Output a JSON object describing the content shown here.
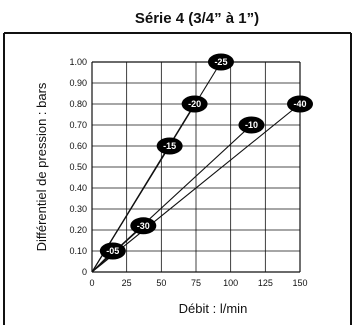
{
  "chart_data": {
    "type": "line",
    "title": "Série 4 (3/4” à 1”)",
    "xlabel": "Débit : l/min",
    "ylabel": "Différentiel de pression : bars",
    "xlim": [
      0,
      150
    ],
    "ylim": [
      0,
      1.0
    ],
    "x_ticks": [
      "0",
      "25",
      "50",
      "75",
      "100",
      "125",
      "150"
    ],
    "y_ticks": [
      "0",
      "0.10",
      "0.20",
      "0.30",
      "0.40",
      "0.50",
      "0.60",
      "0.70",
      "0.80",
      "0.90",
      "1.00"
    ],
    "grid": true,
    "series": [
      {
        "name": "-05",
        "x": [
          0,
          15
        ],
        "y": [
          0,
          0.1
        ]
      },
      {
        "name": "-30",
        "x": [
          0,
          37
        ],
        "y": [
          0,
          0.22
        ]
      },
      {
        "name": "-15",
        "x": [
          0,
          56
        ],
        "y": [
          0,
          0.6
        ]
      },
      {
        "name": "-20",
        "x": [
          0,
          74
        ],
        "y": [
          0,
          0.8
        ]
      },
      {
        "name": "-25",
        "x": [
          0,
          93
        ],
        "y": [
          0,
          1.0
        ]
      },
      {
        "name": "-10",
        "x": [
          0,
          115
        ],
        "y": [
          0,
          0.7
        ]
      },
      {
        "name": "-40",
        "x": [
          0,
          150
        ],
        "y": [
          0,
          0.8
        ]
      }
    ],
    "colors": {
      "line": "#111111",
      "grid": "#111111",
      "label_fill": "#000000",
      "label_text": "#ffffff"
    }
  }
}
